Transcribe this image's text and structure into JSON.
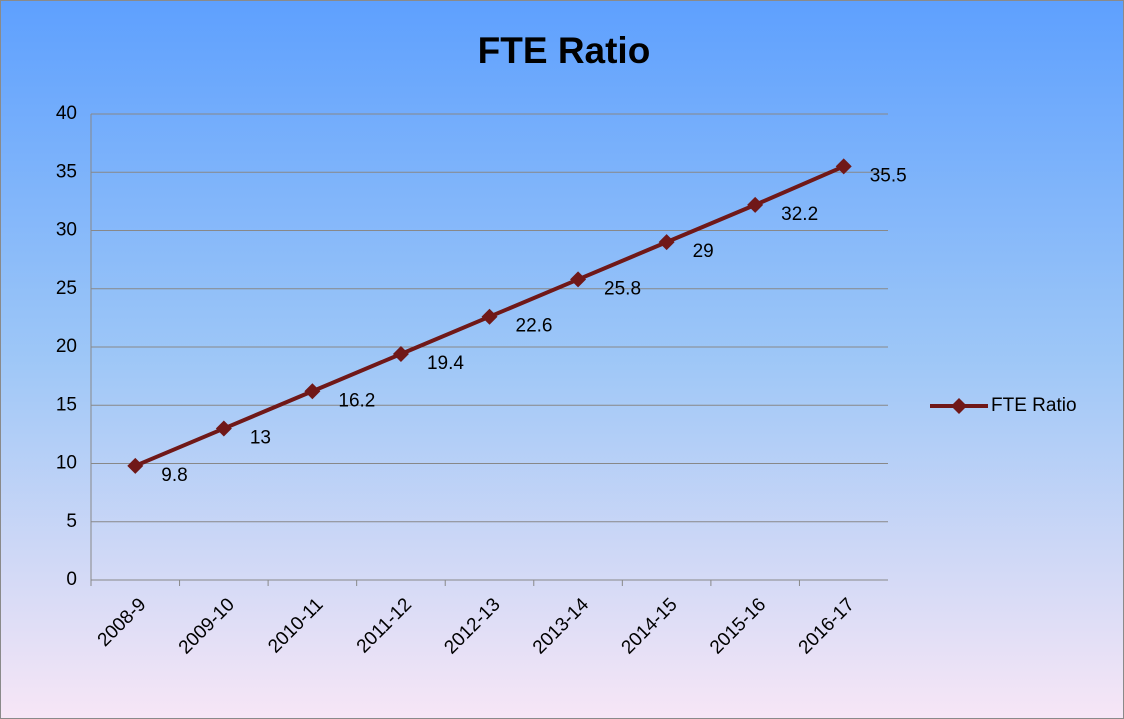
{
  "chart_data": {
    "type": "line",
    "title": "FTE Ratio",
    "categories": [
      "2008-9",
      "2009-10",
      "2010-11",
      "2011-12",
      "2012-13",
      "2013-14",
      "2014-15",
      "2015-16",
      "2016-17"
    ],
    "series": [
      {
        "name": "FTE Ratio",
        "color": "#701818",
        "values": [
          9.8,
          13,
          16.2,
          19.4,
          22.6,
          25.8,
          29,
          32.2,
          35.5
        ]
      }
    ],
    "ylim": [
      0,
      40
    ],
    "yticks": [
      0,
      5,
      10,
      15,
      20,
      25,
      30,
      35,
      40
    ],
    "grid": true,
    "legend": "right"
  }
}
